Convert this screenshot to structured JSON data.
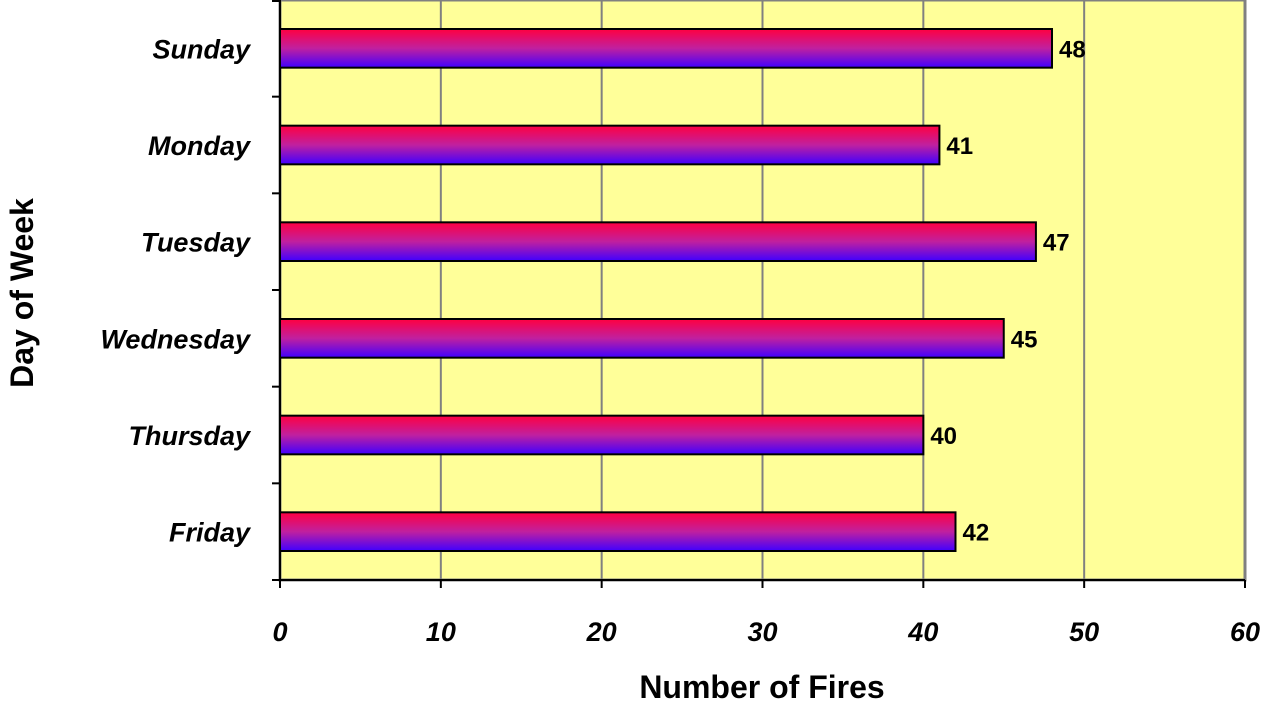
{
  "chart_data": {
    "type": "bar",
    "orientation": "horizontal",
    "categories": [
      "Sunday",
      "Monday",
      "Tuesday",
      "Wednesday",
      "Thursday",
      "Friday"
    ],
    "values": [
      48,
      41,
      47,
      45,
      40,
      42
    ],
    "data_labels": [
      "48",
      "41",
      "47",
      "45",
      "40",
      "42"
    ],
    "xlabel": "Number of Fires",
    "ylabel": "Day of Week",
    "xlim": [
      0,
      60
    ],
    "x_ticks": [
      0,
      10,
      20,
      30,
      40,
      50,
      60
    ],
    "x_tick_labels": [
      "0",
      "10",
      "20",
      "30",
      "40",
      "50",
      "60"
    ],
    "grid": "vertical",
    "legend": "none",
    "colors": {
      "plot_background": "#ffff99",
      "gridline": "#808080",
      "bar_gradient_top": "#ff0040",
      "bar_gradient_bottom": "#4000ff",
      "bar_outline": "#000000"
    }
  }
}
